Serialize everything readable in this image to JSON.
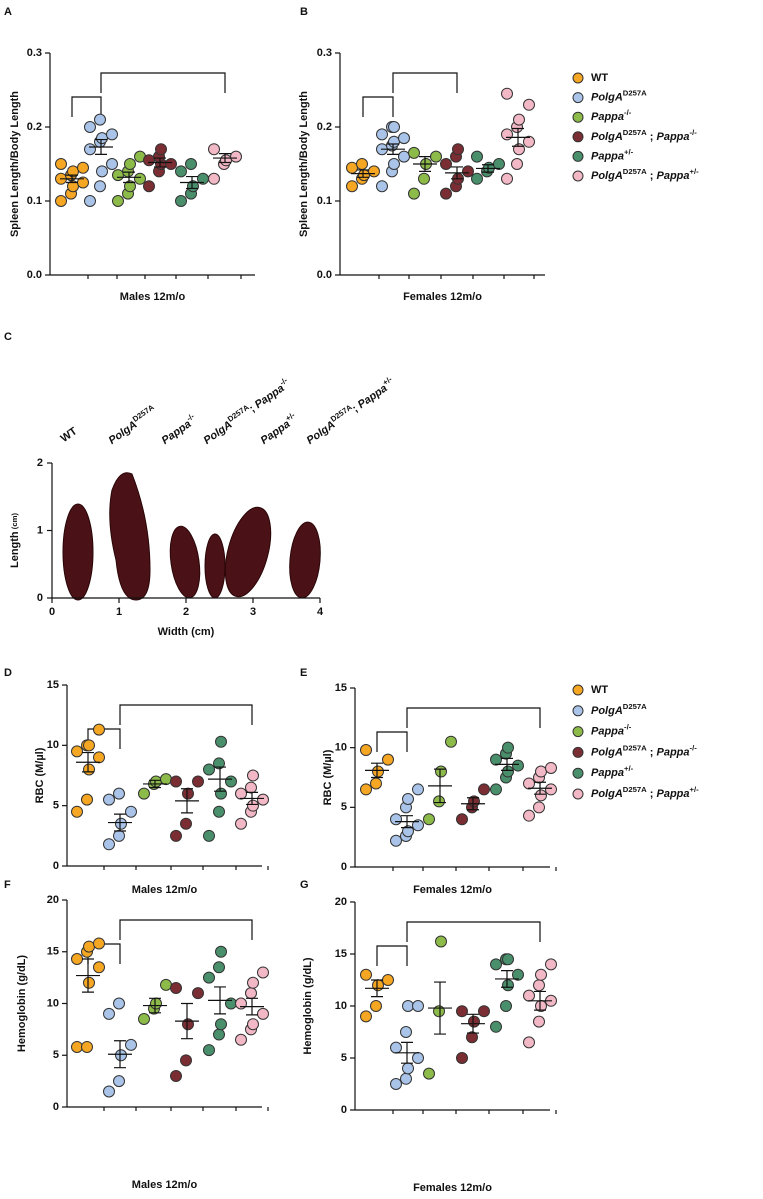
{
  "legends": [
    {
      "items": [
        {
          "label": [
            {
              "t": "WT"
            }
          ],
          "color": "#f5a623"
        },
        {
          "label": [
            {
              "t": "PolgA",
              "i": true
            },
            {
              "t": "D257A",
              "sup": true
            }
          ],
          "color": "#a9c4e8"
        },
        {
          "label": [
            {
              "t": "Pappa",
              "i": true
            },
            {
              "t": "-/-",
              "sup": true
            }
          ],
          "color": "#8dbb4a"
        },
        {
          "label": [
            {
              "t": "PolgA",
              "i": true
            },
            {
              "t": "D257A",
              "sup": true
            },
            {
              "t": " ; "
            },
            {
              "t": "Pappa",
              "i": true
            },
            {
              "t": "-/-",
              "sup": true
            }
          ],
          "color": "#7a2e33"
        },
        {
          "label": [
            {
              "t": "Pappa",
              "i": true
            },
            {
              "t": "+/-",
              "sup": true
            }
          ],
          "color": "#4a8f6b"
        },
        {
          "label": [
            {
              "t": "PolgA",
              "i": true
            },
            {
              "t": "D257A",
              "sup": true
            },
            {
              "t": " ; "
            },
            {
              "t": "Pappa",
              "i": true
            },
            {
              "t": "+/-",
              "sup": true
            }
          ],
          "color": "#f2b8c6"
        }
      ]
    },
    {
      "items": [
        {
          "label": [
            {
              "t": "WT"
            }
          ],
          "color": "#f5a623"
        },
        {
          "label": [
            {
              "t": "PolgA",
              "i": true
            },
            {
              "t": "D257A",
              "sup": true
            }
          ],
          "color": "#a9c4e8"
        },
        {
          "label": [
            {
              "t": "Pappa",
              "i": true
            },
            {
              "t": "-/-",
              "sup": true
            }
          ],
          "color": "#8dbb4a"
        },
        {
          "label": [
            {
              "t": "PolgA",
              "i": true
            },
            {
              "t": "D257A",
              "sup": true
            },
            {
              "t": " ; "
            },
            {
              "t": "Pappa",
              "i": true
            },
            {
              "t": "-/-",
              "sup": true
            }
          ],
          "color": "#7a2e33"
        },
        {
          "label": [
            {
              "t": "Pappa",
              "i": true
            },
            {
              "t": "+/-",
              "sup": true
            }
          ],
          "color": "#4a8f6b"
        },
        {
          "label": [
            {
              "t": "PolgA",
              "i": true
            },
            {
              "t": "D257A",
              "sup": true
            },
            {
              "t": " ; "
            },
            {
              "t": "Pappa",
              "i": true
            },
            {
              "t": "+/-",
              "sup": true
            }
          ],
          "color": "#f2b8c6"
        }
      ]
    }
  ],
  "chart_data": [
    {
      "type": "dot",
      "panel": "A",
      "ylabel": "Spleen Length/Body Length",
      "xlabel": "Males 12m/o",
      "ylim": [
        0,
        0.3
      ],
      "yticks": [
        {
          "value": 0,
          "label": "0.0"
        },
        {
          "value": 0.1,
          "label": "0.1"
        },
        {
          "value": 0.2,
          "label": "0.2"
        },
        {
          "value": 0.3,
          "label": "0.3"
        }
      ],
      "series": [
        {
          "values": [
            0.1,
            0.11,
            0.12,
            0.125,
            0.13,
            0.135,
            0.14,
            0.145,
            0.15
          ],
          "mean": 0.13,
          "sem": 0.005
        },
        {
          "values": [
            0.1,
            0.12,
            0.14,
            0.15,
            0.17,
            0.18,
            0.185,
            0.19,
            0.2,
            0.21
          ],
          "mean": 0.173,
          "sem": 0.01
        },
        {
          "values": [
            0.1,
            0.11,
            0.12,
            0.13,
            0.135,
            0.14,
            0.15,
            0.16
          ],
          "mean": 0.132,
          "sem": 0.007
        },
        {
          "values": [
            0.12,
            0.14,
            0.15,
            0.15,
            0.155,
            0.16,
            0.17
          ],
          "mean": 0.152,
          "sem": 0.006
        },
        {
          "values": [
            0.1,
            0.11,
            0.12,
            0.13,
            0.14,
            0.15
          ],
          "mean": 0.125,
          "sem": 0.008
        },
        {
          "values": [
            0.13,
            0.15,
            0.155,
            0.16,
            0.17
          ],
          "mean": 0.158,
          "sem": 0.006
        }
      ],
      "brackets": [
        [
          0,
          1
        ],
        [
          1,
          5
        ]
      ]
    },
    {
      "type": "dot",
      "panel": "B",
      "ylabel": "Spleen Length/Body Length",
      "xlabel": "Females 12m/o",
      "ylim": [
        0,
        0.3
      ],
      "yticks": [
        {
          "value": 0,
          "label": "0.0"
        },
        {
          "value": 0.1,
          "label": "0.1"
        },
        {
          "value": 0.2,
          "label": "0.2"
        },
        {
          "value": 0.3,
          "label": "0.3"
        }
      ],
      "series": [
        {
          "values": [
            0.12,
            0.13,
            0.135,
            0.14,
            0.145,
            0.15
          ],
          "mean": 0.137,
          "sem": 0.005
        },
        {
          "values": [
            0.12,
            0.14,
            0.15,
            0.16,
            0.17,
            0.175,
            0.18,
            0.185,
            0.19,
            0.2,
            0.2
          ],
          "mean": 0.17,
          "sem": 0.007
        },
        {
          "values": [
            0.11,
            0.13,
            0.15,
            0.16,
            0.165
          ],
          "mean": 0.15,
          "sem": 0.01
        },
        {
          "values": [
            0.11,
            0.12,
            0.13,
            0.14,
            0.15,
            0.16,
            0.17
          ],
          "mean": 0.138,
          "sem": 0.008
        },
        {
          "values": [
            0.13,
            0.14,
            0.145,
            0.15,
            0.16
          ],
          "mean": 0.144,
          "sem": 0.005
        },
        {
          "values": [
            0.13,
            0.15,
            0.17,
            0.18,
            0.19,
            0.2,
            0.21,
            0.23,
            0.245
          ],
          "mean": 0.186,
          "sem": 0.012
        }
      ],
      "brackets": [
        [
          0,
          1
        ],
        [
          1,
          3
        ]
      ]
    },
    {
      "type": "image",
      "panel": "C",
      "xlabel": "Width (cm)",
      "ylabel": [
        {
          "t": "Length"
        },
        {
          "t": " (cm)",
          "small": true
        }
      ],
      "xlim": [
        0,
        4
      ],
      "xticks": [
        0,
        1,
        2,
        3,
        4
      ],
      "ylim": [
        0,
        2
      ],
      "yticks": [
        0,
        1,
        2
      ],
      "labels": [
        [
          {
            "t": "WT"
          }
        ],
        [
          {
            "t": "PolgA",
            "i": true
          },
          {
            "t": "D257A",
            "sup": true
          }
        ],
        [
          {
            "t": "Pappa",
            "i": true
          },
          {
            "t": "-/-",
            "sup": true
          }
        ],
        [
          {
            "t": "PolgA",
            "i": true
          },
          {
            "t": "D257A",
            "sup": true
          },
          {
            "t": "; "
          },
          {
            "t": "Pappa",
            "i": true
          },
          {
            "t": "-/-",
            "sup": true
          }
        ],
        [
          {
            "t": "Pappa",
            "i": true
          },
          {
            "t": "+/-",
            "sup": true
          }
        ],
        [
          {
            "t": "PolgA",
            "i": true
          },
          {
            "t": "D257A",
            "sup": true
          },
          {
            "t": "; "
          },
          {
            "t": "Pappa",
            "i": true
          },
          {
            "t": "+/-",
            "sup": true
          }
        ]
      ]
    },
    {
      "type": "dot",
      "panel": "D",
      "ylabel": "RBC (M/µl)",
      "xlabel": "Males 12m/o",
      "ylim": [
        0,
        15
      ],
      "yticks": [
        0,
        5,
        10,
        15
      ],
      "series": [
        {
          "values": [
            4.5,
            5.5,
            8,
            9,
            9.5,
            10,
            10,
            11.3
          ],
          "mean": 8.6,
          "sem": 0.8
        },
        {
          "values": [
            1.8,
            2.5,
            3.5,
            4.5,
            5.5,
            6
          ],
          "mean": 3.6,
          "sem": 0.7
        },
        {
          "values": [
            6,
            6.8,
            7,
            7.2
          ],
          "mean": 6.8,
          "sem": 0.3
        },
        {
          "values": [
            2.5,
            3.5,
            6,
            7,
            7
          ],
          "mean": 5.4,
          "sem": 1
        },
        {
          "values": [
            2.5,
            4.5,
            6,
            7,
            8,
            8.5,
            10.3
          ],
          "mean": 7.2,
          "sem": 1
        },
        {
          "values": [
            3.5,
            4.5,
            5,
            5.5,
            6,
            6.5,
            7.5
          ],
          "mean": 5.6,
          "sem": 0.5
        }
      ],
      "brackets": [
        [
          0,
          1
        ],
        [
          1,
          5
        ]
      ]
    },
    {
      "type": "dot",
      "panel": "E",
      "ylabel": "RBC (M/µl)",
      "xlabel": "Females 12m/o",
      "ylim": [
        0,
        15
      ],
      "yticks": [
        0,
        5,
        10,
        15
      ],
      "series": [
        {
          "values": [
            6.5,
            7,
            8,
            9,
            9.8
          ],
          "mean": 8.1,
          "sem": 0.6
        },
        {
          "values": [
            2.2,
            2.6,
            3,
            3.5,
            4,
            5,
            5.7,
            6.5
          ],
          "mean": 3.8,
          "sem": 0.5
        },
        {
          "values": [
            4,
            5.5,
            8,
            10.5
          ],
          "mean": 6.8,
          "sem": 1.4
        },
        {
          "values": [
            4,
            5,
            5.5,
            6.5
          ],
          "mean": 5.3,
          "sem": 0.5
        },
        {
          "values": [
            6.5,
            7.5,
            8,
            8.5,
            9,
            9.5,
            10
          ],
          "mean": 8.6,
          "sem": 0.5
        },
        {
          "values": [
            4.3,
            5,
            6,
            6.5,
            7,
            7.5,
            8,
            8.3
          ],
          "mean": 6.6,
          "sem": 0.5
        }
      ],
      "brackets": [
        [
          0,
          1
        ],
        [
          1,
          5
        ]
      ]
    },
    {
      "type": "dot",
      "panel": "F",
      "ylabel": "Hemoglobin (g/dL)",
      "xlabel": "Males 12m/o",
      "ylim": [
        0,
        20
      ],
      "yticks": [
        0,
        5,
        10,
        15,
        20
      ],
      "series": [
        {
          "values": [
            5.8,
            5.8,
            12,
            13.5,
            14.3,
            15,
            15.5,
            15.8
          ],
          "mean": 12.7,
          "sem": 1.6
        },
        {
          "values": [
            1.5,
            2.5,
            5,
            6,
            9,
            10
          ],
          "mean": 5.1,
          "sem": 1.3
        },
        {
          "values": [
            8.5,
            9.5,
            10,
            11.8
          ],
          "mean": 9.8,
          "sem": 0.7
        },
        {
          "values": [
            3,
            4.5,
            8,
            11,
            11.5
          ],
          "mean": 8.3,
          "sem": 1.7
        },
        {
          "values": [
            5.5,
            7,
            8,
            10,
            12.5,
            13.5,
            15
          ],
          "mean": 10.3,
          "sem": 1.3
        },
        {
          "values": [
            6.5,
            7.5,
            8,
            9,
            10,
            11,
            12,
            13
          ],
          "mean": 9.7,
          "sem": 0.8
        }
      ],
      "brackets": [
        [
          0,
          1
        ],
        [
          1,
          5
        ]
      ]
    },
    {
      "type": "dot",
      "panel": "G",
      "ylabel": "Hemoglobin (g/dL)",
      "xlabel": "Females 12m/o",
      "ylim": [
        0,
        20
      ],
      "yticks": [
        0,
        5,
        10,
        15,
        20
      ],
      "series": [
        {
          "values": [
            9,
            10,
            12,
            12.5,
            13
          ],
          "mean": 11.7,
          "sem": 0.8
        },
        {
          "values": [
            2.5,
            3,
            4,
            5,
            6,
            7.5,
            10,
            10
          ],
          "mean": 5.5,
          "sem": 1
        },
        {
          "values": [
            3.5,
            9.5,
            16.2
          ],
          "mean": 9.8,
          "sem": 2.5
        },
        {
          "values": [
            5,
            7,
            8.5,
            9.5,
            9.5
          ],
          "mean": 8.3,
          "sem": 0.9
        },
        {
          "values": [
            8,
            10,
            12,
            13,
            14,
            14.5,
            14.5
          ],
          "mean": 12.6,
          "sem": 0.8
        },
        {
          "values": [
            6.5,
            8.5,
            10,
            10.5,
            11,
            12,
            13,
            14
          ],
          "mean": 10.5,
          "sem": 0.9
        }
      ],
      "brackets": [
        [
          0,
          1
        ],
        [
          1,
          5
        ]
      ]
    }
  ]
}
